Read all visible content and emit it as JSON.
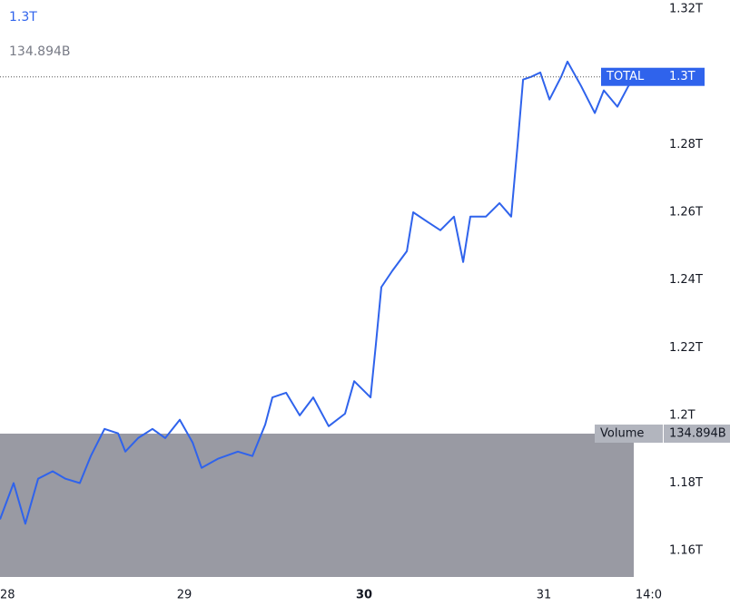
{
  "chart_data": {
    "type": "line",
    "series": [
      {
        "name": "TOTAL",
        "color": "#2f63ec",
        "x": [
          27.975,
          28.051,
          28.116,
          28.187,
          28.268,
          28.339,
          28.419,
          28.48,
          28.556,
          28.632,
          28.672,
          28.743,
          28.823,
          28.894,
          28.975,
          29.046,
          29.096,
          29.187,
          29.298,
          29.379,
          29.45,
          29.49,
          29.566,
          29.642,
          29.717,
          29.803,
          29.894,
          29.945,
          30.036,
          30.066,
          30.096,
          30.157,
          30.238,
          30.273,
          30.349,
          30.424,
          30.5,
          30.551,
          30.591,
          30.677,
          30.753,
          30.818,
          30.854,
          30.884,
          30.929,
          30.98,
          31.031,
          31.096,
          31.131,
          31.207,
          31.283,
          31.333,
          31.409,
          31.47,
          31.51
        ],
        "values": [
          1.1693,
          1.18,
          1.168,
          1.1813,
          1.1835,
          1.1813,
          1.18,
          1.188,
          1.196,
          1.1947,
          1.1893,
          1.1933,
          1.196,
          1.1933,
          1.1987,
          1.192,
          1.1845,
          1.1872,
          1.1893,
          1.188,
          1.1973,
          1.2053,
          1.2067,
          1.2,
          1.2053,
          1.1968,
          1.2005,
          1.2101,
          1.2053,
          1.2213,
          1.2379,
          1.2427,
          1.2485,
          1.26,
          1.2573,
          1.2547,
          1.2587,
          1.2453,
          1.2587,
          1.2587,
          1.2627,
          1.2587,
          1.28,
          1.2992,
          1.3,
          1.3013,
          1.2933,
          1.3,
          1.3045,
          1.2973,
          1.2893,
          1.296,
          1.2912,
          1.2973,
          1.2997
        ]
      }
    ],
    "last_price": 1.3,
    "last_price_label": "1.3T",
    "volume": {
      "name": "Volume",
      "value": 134.894,
      "label": "134.894B"
    },
    "xlim": [
      27.975,
      31.621
    ],
    "ylim": [
      1.1512,
      1.3227
    ],
    "xticks": [
      28,
      29,
      30,
      31,
      {
        "value": 31.583,
        "label": "14:0"
      }
    ],
    "yticks": [
      {
        "value": 1.16,
        "label": "1.16T"
      },
      {
        "value": 1.18,
        "label": "1.18T"
      },
      {
        "value": 1.2,
        "label": "1.2T"
      },
      {
        "value": 1.22,
        "label": "1.22T"
      },
      {
        "value": 1.24,
        "label": "1.24T"
      },
      {
        "value": 1.26,
        "label": "1.26T"
      },
      {
        "value": 1.28,
        "label": "1.28T"
      },
      {
        "value": 1.32,
        "label": "1.32T"
      }
    ],
    "grid": false
  }
}
